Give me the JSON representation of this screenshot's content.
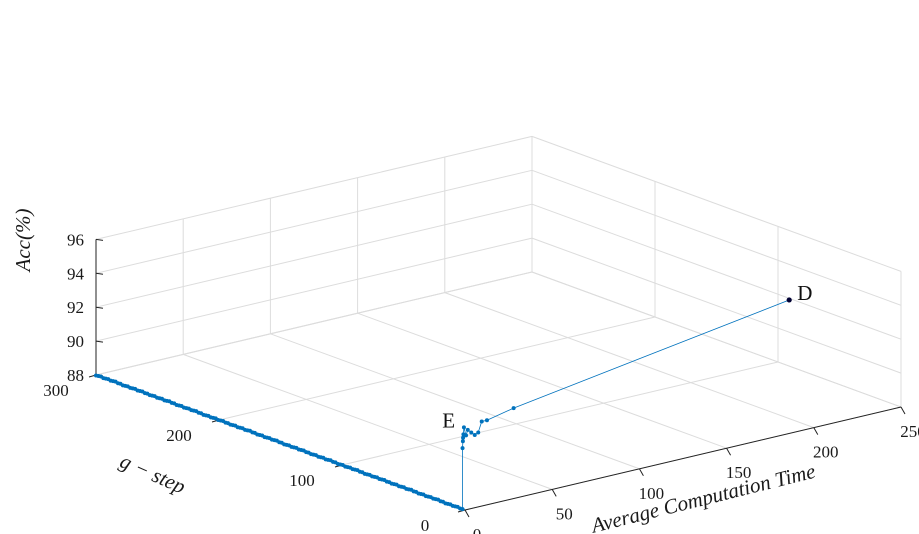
{
  "chart_data": {
    "type": "scatter",
    "title": "",
    "xlabel": "Average Computation Time",
    "ylabel": "g − step",
    "zlabel": "Acc(%)",
    "xlim": [
      0,
      250
    ],
    "ylim": [
      0,
      300
    ],
    "zlim": [
      88,
      96
    ],
    "x_ticks": [
      "0",
      "50",
      "100",
      "150",
      "200",
      "250"
    ],
    "y_ticks": [
      "0",
      "100",
      "200",
      "300"
    ],
    "z_ticks": [
      "88",
      "90",
      "92",
      "94",
      "96"
    ],
    "grid": true,
    "series_color": "#0072BD",
    "endpoint_color": "#000033",
    "annotations": [
      {
        "label": "E",
        "x": 1,
        "y": 2,
        "z": 92.8
      },
      {
        "label": "D",
        "x": 200,
        "y": 20,
        "z": 95.0
      }
    ],
    "series": [
      {
        "points_start": {
          "x": 0.0,
          "y": 300,
          "z": 88.0
        },
        "points_end": {
          "x": 0.0,
          "y": 4,
          "z": 88.0
        },
        "point_count": 150,
        "jump": [
          {
            "x": 0.0,
            "y": 2,
            "z": 88.0
          },
          {
            "x": 0.0,
            "y": 2,
            "z": 91.6
          },
          {
            "x": 0.2,
            "y": 2,
            "z": 92.0
          },
          {
            "x": 0.3,
            "y": 2,
            "z": 92.2
          },
          {
            "x": 0.5,
            "y": 2,
            "z": 92.4
          },
          {
            "x": 0.8,
            "y": 2,
            "z": 92.8
          },
          {
            "x": 2,
            "y": 2,
            "z": 92.3
          },
          {
            "x": 3,
            "y": 2,
            "z": 92.6
          },
          {
            "x": 5,
            "y": 2,
            "z": 92.4
          },
          {
            "x": 7,
            "y": 2,
            "z": 92.2
          },
          {
            "x": 9,
            "y": 2,
            "z": 92.3
          },
          {
            "x": 11,
            "y": 2,
            "z": 92.9
          },
          {
            "x": 14,
            "y": 2,
            "z": 92.9
          },
          {
            "x": 30,
            "y": 3,
            "z": 93.2
          },
          {
            "x": 200,
            "y": 20,
            "z": 95.0
          }
        ]
      }
    ]
  }
}
